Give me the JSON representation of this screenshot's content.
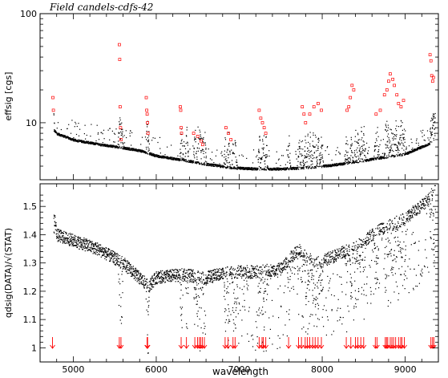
{
  "title": "Field  candels-cdfs-42",
  "chart_data": [
    {
      "type": "scatter",
      "name": "effsig-panel",
      "ylabel": "effsig  [cgs]",
      "yscale": "log",
      "ylim": [
        3,
        100
      ],
      "xlim": [
        4600,
        9400
      ],
      "yticks": [
        {
          "value": 10,
          "label": "10"
        },
        {
          "value": 100,
          "label": "100"
        }
      ],
      "xticks_labeled": false,
      "series": [
        {
          "color": "#000000",
          "marker": "dot",
          "description_points": "dense noise curve",
          "baseline": [
            [
              4750,
              8.8
            ],
            [
              4800,
              8.0
            ],
            [
              5000,
              7.0
            ],
            [
              5300,
              6.4
            ],
            [
              5550,
              6.0
            ],
            [
              5800,
              5.6
            ],
            [
              6000,
              5.0
            ],
            [
              6300,
              4.6
            ],
            [
              6600,
              4.2
            ],
            [
              6900,
              3.9
            ],
            [
              7200,
              3.8
            ],
            [
              7500,
              3.8
            ],
            [
              7800,
              3.9
            ],
            [
              8100,
              4.1
            ],
            [
              8400,
              4.4
            ],
            [
              8700,
              4.8
            ],
            [
              9000,
              5.2
            ],
            [
              9300,
              6.5
            ]
          ]
        },
        {
          "color": "#ff0000",
          "marker": "open-square",
          "points": [
            [
              4755,
              17
            ],
            [
              4760,
              13
            ],
            [
              5555,
              52
            ],
            [
              5560,
              38
            ],
            [
              5565,
              14
            ],
            [
              5570,
              9
            ],
            [
              5575,
              7
            ],
            [
              5880,
              17
            ],
            [
              5885,
              13
            ],
            [
              5890,
              12
            ],
            [
              5895,
              10
            ],
            [
              5900,
              8
            ],
            [
              6290,
              14
            ],
            [
              6295,
              13
            ],
            [
              6300,
              9
            ],
            [
              6305,
              8
            ],
            [
              6450,
              8
            ],
            [
              6500,
              7.5
            ],
            [
              6540,
              6.8
            ],
            [
              6560,
              6.3
            ],
            [
              6840,
              9
            ],
            [
              6870,
              8
            ],
            [
              6900,
              7
            ],
            [
              7240,
              13
            ],
            [
              7260,
              11
            ],
            [
              7280,
              10
            ],
            [
              7300,
              9
            ],
            [
              7320,
              8
            ],
            [
              7760,
              14
            ],
            [
              7780,
              12
            ],
            [
              7800,
              10
            ],
            [
              7850,
              12
            ],
            [
              7900,
              14
            ],
            [
              7950,
              15
            ],
            [
              7990,
              13
            ],
            [
              8300,
              13
            ],
            [
              8320,
              14
            ],
            [
              8340,
              17
            ],
            [
              8360,
              22
            ],
            [
              8380,
              20
            ],
            [
              8650,
              12
            ],
            [
              8700,
              13
            ],
            [
              8750,
              18
            ],
            [
              8780,
              20
            ],
            [
              8800,
              24
            ],
            [
              8820,
              28
            ],
            [
              8850,
              25
            ],
            [
              8870,
              22
            ],
            [
              8900,
              18
            ],
            [
              8920,
              15
            ],
            [
              8950,
              14
            ],
            [
              8980,
              16
            ],
            [
              9300,
              42
            ],
            [
              9310,
              37
            ],
            [
              9320,
              27
            ],
            [
              9330,
              24
            ],
            [
              9340,
              26
            ]
          ]
        }
      ]
    },
    {
      "type": "scatter",
      "name": "ratio-panel",
      "xlabel": "wavelength",
      "ylabel": "qdsig(DATA)/√(STAT)",
      "ylim": [
        0.95,
        1.58
      ],
      "xlim": [
        4600,
        9400
      ],
      "xticks": [
        {
          "value": 5000,
          "label": "5000"
        },
        {
          "value": 6000,
          "label": "6000"
        },
        {
          "value": 7000,
          "label": "7000"
        },
        {
          "value": 8000,
          "label": "8000"
        },
        {
          "value": 9000,
          "label": "9000"
        }
      ],
      "yticks": [
        {
          "value": 1.0,
          "label": "1"
        },
        {
          "value": 1.1,
          "label": "1.1"
        },
        {
          "value": 1.2,
          "label": "1.2"
        },
        {
          "value": 1.3,
          "label": "1.3"
        },
        {
          "value": 1.4,
          "label": "1.4"
        },
        {
          "value": 1.5,
          "label": "1.5"
        }
      ],
      "series": [
        {
          "color": "#000000",
          "marker": "dot",
          "trend": [
            [
              4750,
              1.5
            ],
            [
              4800,
              1.4
            ],
            [
              5000,
              1.38
            ],
            [
              5300,
              1.35
            ],
            [
              5600,
              1.3
            ],
            [
              5900,
              1.22
            ],
            [
              6000,
              1.25
            ],
            [
              6300,
              1.26
            ],
            [
              6600,
              1.25
            ],
            [
              6900,
              1.27
            ],
            [
              7200,
              1.27
            ],
            [
              7500,
              1.28
            ],
            [
              7700,
              1.35
            ],
            [
              7900,
              1.3
            ],
            [
              8100,
              1.32
            ],
            [
              8400,
              1.36
            ],
            [
              8700,
              1.42
            ],
            [
              9000,
              1.46
            ],
            [
              9300,
              1.53
            ],
            [
              9350,
              1.58
            ]
          ]
        }
      ],
      "sky_line_markers": {
        "color": "#ff0000",
        "wavelengths": [
          4750,
          5555,
          5575,
          5890,
          5896,
          6300,
          6364,
          6465,
          6498,
          6520,
          6535,
          6555,
          6580,
          6830,
          6865,
          6925,
          6950,
          7240,
          7275,
          7290,
          7320,
          7595,
          7715,
          7750,
          7795,
          7820,
          7850,
          7885,
          7915,
          7950,
          7990,
          8290,
          8345,
          8400,
          8430,
          8465,
          8500,
          8640,
          8660,
          8760,
          8775,
          8790,
          8820,
          8840,
          8860,
          8885,
          8920,
          8945,
          8960,
          8990,
          9310,
          9330,
          9345
        ]
      }
    }
  ]
}
